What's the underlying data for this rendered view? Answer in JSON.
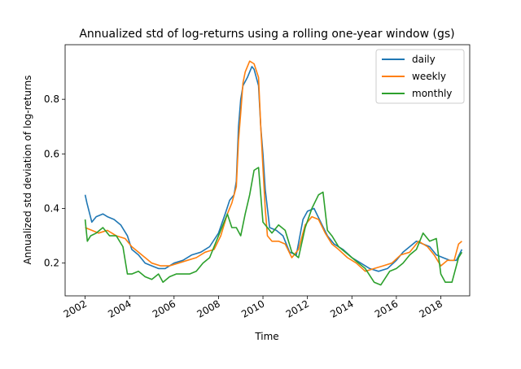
{
  "chart_data": {
    "type": "line",
    "title": "Annualized std of log-returns using a rolling one-year window (gs)",
    "xlabel": "Time",
    "ylabel": "Annualized std deviation of log-returns",
    "xlim": [
      2001.1,
      2019.3
    ],
    "ylim": [
      0.08,
      1.0
    ],
    "xticks": [
      2002,
      2004,
      2006,
      2008,
      2010,
      2012,
      2014,
      2016,
      2018
    ],
    "yticks": [
      0.2,
      0.4,
      0.6,
      0.8
    ],
    "legend_position": "top-right",
    "grid": false,
    "series": [
      {
        "name": "daily",
        "color": "#1f77b4",
        "x": [
          2002.0,
          2002.08,
          2002.3,
          2002.5,
          2002.8,
          2003.0,
          2003.3,
          2003.6,
          2003.9,
          2004.1,
          2004.4,
          2004.7,
          2005.0,
          2005.3,
          2005.6,
          2006.0,
          2006.4,
          2006.8,
          2007.2,
          2007.6,
          2008.0,
          2008.3,
          2008.5,
          2008.7,
          2008.8,
          2008.9,
          2009.0,
          2009.1,
          2009.3,
          2009.5,
          2009.6,
          2009.8,
          2009.9,
          2010.0,
          2010.1,
          2010.3,
          2010.6,
          2010.9,
          2011.2,
          2011.5,
          2011.8,
          2012.0,
          2012.3,
          2012.6,
          2012.9,
          2013.2,
          2013.6,
          2014.0,
          2014.4,
          2014.8,
          2015.2,
          2015.6,
          2016.0,
          2016.3,
          2016.6,
          2016.9,
          2017.2,
          2017.5,
          2017.8,
          2018.1,
          2018.4,
          2018.7,
          2018.95
        ],
        "values": [
          0.45,
          0.42,
          0.35,
          0.37,
          0.38,
          0.37,
          0.36,
          0.34,
          0.3,
          0.25,
          0.23,
          0.2,
          0.19,
          0.18,
          0.18,
          0.2,
          0.21,
          0.23,
          0.24,
          0.26,
          0.31,
          0.38,
          0.43,
          0.45,
          0.5,
          0.7,
          0.8,
          0.85,
          0.88,
          0.92,
          0.91,
          0.85,
          0.7,
          0.6,
          0.47,
          0.33,
          0.32,
          0.3,
          0.24,
          0.23,
          0.36,
          0.39,
          0.4,
          0.35,
          0.3,
          0.27,
          0.25,
          0.22,
          0.2,
          0.18,
          0.17,
          0.18,
          0.21,
          0.24,
          0.26,
          0.28,
          0.27,
          0.26,
          0.23,
          0.22,
          0.21,
          0.21,
          0.25
        ]
      },
      {
        "name": "weekly",
        "color": "#ff7f0e",
        "x": [
          2002.0,
          2002.3,
          2002.6,
          2003.0,
          2003.4,
          2003.8,
          2004.1,
          2004.4,
          2004.7,
          2005.0,
          2005.4,
          2005.8,
          2006.2,
          2006.6,
          2007.0,
          2007.4,
          2007.8,
          2008.1,
          2008.4,
          2008.6,
          2008.8,
          2008.9,
          2009.0,
          2009.1,
          2009.2,
          2009.4,
          2009.6,
          2009.8,
          2009.9,
          2010.0,
          2010.1,
          2010.2,
          2010.4,
          2010.7,
          2011.0,
          2011.3,
          2011.6,
          2011.9,
          2012.2,
          2012.5,
          2012.8,
          2013.1,
          2013.4,
          2013.8,
          2014.2,
          2014.6,
          2015.0,
          2015.4,
          2015.8,
          2016.2,
          2016.6,
          2017.0,
          2017.4,
          2017.7,
          2018.0,
          2018.3,
          2018.6,
          2018.8,
          2018.95
        ],
        "values": [
          0.33,
          0.32,
          0.31,
          0.32,
          0.3,
          0.29,
          0.26,
          0.24,
          0.22,
          0.2,
          0.19,
          0.19,
          0.2,
          0.21,
          0.22,
          0.24,
          0.25,
          0.3,
          0.38,
          0.42,
          0.48,
          0.65,
          0.75,
          0.86,
          0.9,
          0.94,
          0.93,
          0.88,
          0.7,
          0.55,
          0.4,
          0.3,
          0.28,
          0.28,
          0.27,
          0.22,
          0.25,
          0.34,
          0.37,
          0.36,
          0.31,
          0.27,
          0.25,
          0.22,
          0.2,
          0.17,
          0.18,
          0.19,
          0.2,
          0.23,
          0.24,
          0.28,
          0.26,
          0.23,
          0.19,
          0.21,
          0.21,
          0.27,
          0.28
        ]
      },
      {
        "name": "monthly",
        "color": "#2ca02c",
        "x": [
          2002.0,
          2002.1,
          2002.25,
          2002.5,
          2002.8,
          2003.1,
          2003.4,
          2003.7,
          2003.9,
          2004.1,
          2004.4,
          2004.7,
          2005.0,
          2005.3,
          2005.5,
          2005.8,
          2006.1,
          2006.4,
          2006.7,
          2007.0,
          2007.3,
          2007.6,
          2007.9,
          2008.2,
          2008.4,
          2008.6,
          2008.8,
          2009.0,
          2009.2,
          2009.4,
          2009.6,
          2009.8,
          2010.0,
          2010.2,
          2010.4,
          2010.7,
          2011.0,
          2011.3,
          2011.6,
          2011.9,
          2012.2,
          2012.5,
          2012.7,
          2012.9,
          2013.1,
          2013.4,
          2013.7,
          2014.0,
          2014.3,
          2014.6,
          2015.0,
          2015.3,
          2015.7,
          2016.0,
          2016.3,
          2016.6,
          2016.9,
          2017.2,
          2017.5,
          2017.8,
          2018.0,
          2018.2,
          2018.5,
          2018.8,
          2018.95
        ],
        "values": [
          0.36,
          0.28,
          0.3,
          0.31,
          0.33,
          0.3,
          0.3,
          0.26,
          0.16,
          0.16,
          0.17,
          0.15,
          0.14,
          0.16,
          0.13,
          0.15,
          0.16,
          0.16,
          0.16,
          0.17,
          0.2,
          0.22,
          0.28,
          0.34,
          0.38,
          0.33,
          0.33,
          0.3,
          0.38,
          0.45,
          0.54,
          0.55,
          0.35,
          0.33,
          0.31,
          0.34,
          0.32,
          0.24,
          0.22,
          0.33,
          0.4,
          0.45,
          0.46,
          0.32,
          0.3,
          0.26,
          0.24,
          0.22,
          0.2,
          0.18,
          0.13,
          0.12,
          0.17,
          0.18,
          0.2,
          0.23,
          0.25,
          0.31,
          0.28,
          0.29,
          0.16,
          0.13,
          0.13,
          0.22,
          0.24
        ]
      }
    ]
  }
}
